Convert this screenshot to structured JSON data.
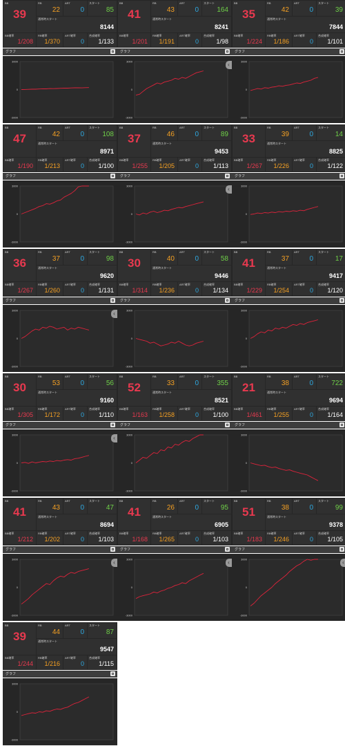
{
  "labels": {
    "bb": "BB",
    "rb": "RB",
    "art": "ART",
    "start": "スタート",
    "normal_start": "通常時スタート",
    "bb_prob": "BB確率",
    "rb_prob": "RB確率",
    "art_prob": "ART確率",
    "total_prob": "合成確率",
    "graph": "グラフ",
    "y_top": "3000",
    "y_zero": "0",
    "y_bottom": "-3000"
  },
  "colors": {
    "bb": "#e8394f",
    "rb": "#f5a023",
    "art": "#2ea8e0",
    "start": "#6fd048",
    "line": "#e0233b"
  },
  "icons": {
    "expand": "expand-icon",
    "next": "chevron-right-icon"
  },
  "machines": [
    {
      "bb": "39",
      "rb": "22",
      "art": "0",
      "start": "85",
      "normal_start": "8144",
      "bb_prob": "1/208",
      "rb_prob": "1/370",
      "art_prob": "0",
      "total_prob": "1/133",
      "arrow": false,
      "series": [
        0,
        10,
        25,
        40,
        35,
        60,
        80,
        75,
        100,
        95,
        110,
        130,
        150,
        145,
        170,
        185,
        190,
        175,
        200,
        210
      ]
    },
    {
      "bb": "41",
      "rb": "43",
      "art": "0",
      "start": "164",
      "normal_start": "8241",
      "bb_prob": "1/201",
      "rb_prob": "1/191",
      "art_prob": "0",
      "total_prob": "1/98",
      "arrow": true,
      "series": [
        -600,
        -500,
        -200,
        100,
        300,
        500,
        700,
        600,
        800,
        900,
        1000,
        1200,
        1100,
        1300,
        1200,
        1400,
        1600,
        1800,
        1900,
        2000
      ]
    },
    {
      "bb": "35",
      "rb": "42",
      "art": "0",
      "start": "39",
      "normal_start": "7844",
      "bb_prob": "1/224",
      "rb_prob": "1/186",
      "art_prob": "0",
      "total_prob": "1/101",
      "arrow": false,
      "series": [
        -100,
        0,
        100,
        50,
        200,
        150,
        250,
        300,
        400,
        350,
        450,
        500,
        600,
        700,
        650,
        800,
        900,
        1000,
        1200,
        1300
      ]
    },
    {
      "bb": "47",
      "rb": "42",
      "art": "0",
      "start": "108",
      "normal_start": "8971",
      "bb_prob": "1/190",
      "rb_prob": "1/213",
      "art_prob": "0",
      "total_prob": "1/100",
      "arrow": false,
      "series": [
        0,
        150,
        300,
        450,
        600,
        800,
        900,
        1100,
        1050,
        1200,
        1400,
        1500,
        1800,
        2000,
        2200,
        2500,
        2900,
        3000,
        3000,
        3000
      ]
    },
    {
      "bb": "37",
      "rb": "46",
      "art": "0",
      "start": "89",
      "normal_start": "9453",
      "bb_prob": "1/255",
      "rb_prob": "1/205",
      "art_prob": "0",
      "total_prob": "1/113",
      "arrow": true,
      "series": [
        0,
        -100,
        100,
        0,
        200,
        300,
        150,
        250,
        400,
        350,
        500,
        600,
        700,
        650,
        800,
        900,
        1000,
        1100,
        1200,
        1300
      ]
    },
    {
      "bb": "33",
      "rb": "39",
      "art": "0",
      "start": "14",
      "normal_start": "8825",
      "bb_prob": "1/267",
      "rb_prob": "1/226",
      "art_prob": "0",
      "total_prob": "1/122",
      "arrow": false,
      "series": [
        -50,
        0,
        100,
        50,
        150,
        100,
        200,
        150,
        250,
        200,
        300,
        250,
        350,
        300,
        400,
        350,
        500,
        600,
        700,
        800
      ]
    },
    {
      "bb": "36",
      "rb": "37",
      "art": "0",
      "start": "98",
      "normal_start": "9620",
      "bb_prob": "1/267",
      "rb_prob": "1/260",
      "art_prob": "0",
      "total_prob": "1/131",
      "arrow": true,
      "series": [
        0,
        200,
        500,
        800,
        1000,
        900,
        1200,
        1100,
        1300,
        1200,
        1000,
        1100,
        1200,
        900,
        1100,
        1000,
        1200,
        1100,
        1000,
        900
      ]
    },
    {
      "bb": "30",
      "rb": "40",
      "art": "0",
      "start": "58",
      "normal_start": "9446",
      "bb_prob": "1/314",
      "rb_prob": "1/236",
      "art_prob": "0",
      "total_prob": "1/134",
      "arrow": false,
      "series": [
        0,
        -100,
        -200,
        -300,
        -500,
        -400,
        -600,
        -800,
        -700,
        -600,
        -400,
        -500,
        -300,
        -500,
        -700,
        -800,
        -700,
        -500,
        -400,
        -300
      ]
    },
    {
      "bb": "41",
      "rb": "37",
      "art": "0",
      "start": "17",
      "normal_start": "9417",
      "bb_prob": "1/229",
      "rb_prob": "1/254",
      "art_prob": "0",
      "total_prob": "1/120",
      "arrow": false,
      "series": [
        0,
        200,
        500,
        700,
        600,
        900,
        800,
        1100,
        1000,
        1200,
        1100,
        1300,
        1500,
        1400,
        1600,
        1500,
        1700,
        1800,
        1900,
        2000
      ]
    },
    {
      "bb": "30",
      "rb": "53",
      "art": "0",
      "start": "56",
      "normal_start": "9160",
      "bb_prob": "1/305",
      "rb_prob": "1/172",
      "art_prob": "0",
      "total_prob": "1/110",
      "arrow": true,
      "series": [
        0,
        50,
        -50,
        100,
        0,
        80,
        150,
        100,
        200,
        150,
        250,
        200,
        300,
        350,
        300,
        450,
        500,
        600,
        700,
        800
      ]
    },
    {
      "bb": "52",
      "rb": "33",
      "art": "0",
      "start": "355",
      "normal_start": "8521",
      "bb_prob": "1/163",
      "rb_prob": "1/258",
      "art_prob": "0",
      "total_prob": "1/100",
      "arrow": false,
      "series": [
        0,
        300,
        600,
        500,
        800,
        1100,
        1000,
        1400,
        1300,
        1700,
        1600,
        2000,
        1900,
        2200,
        2400,
        2300,
        2600,
        2800,
        3000,
        3000
      ]
    },
    {
      "bb": "21",
      "rb": "38",
      "art": "0",
      "start": "722",
      "normal_start": "9694",
      "bb_prob": "1/461",
      "rb_prob": "1/255",
      "art_prob": "0",
      "total_prob": "1/164",
      "arrow": false,
      "series": [
        0,
        -100,
        -200,
        -300,
        -250,
        -400,
        -500,
        -450,
        -600,
        -700,
        -800,
        -750,
        -900,
        -1000,
        -1100,
        -1200,
        -1300,
        -1500,
        -1700,
        -1900
      ]
    },
    {
      "bb": "41",
      "rb": "43",
      "art": "0",
      "start": "47",
      "normal_start": "8694",
      "bb_prob": "1/212",
      "rb_prob": "1/202",
      "art_prob": "0",
      "total_prob": "1/103",
      "arrow": true,
      "series": [
        -1800,
        -1500,
        -1200,
        -800,
        -500,
        -200,
        100,
        400,
        300,
        700,
        1000,
        1200,
        1100,
        1400,
        1600,
        1500,
        1700,
        1800,
        1900,
        2000
      ]
    },
    {
      "bb": "41",
      "rb": "26",
      "art": "0",
      "start": "95",
      "normal_start": "6905",
      "bb_prob": "1/168",
      "rb_prob": "1/265",
      "art_prob": "0",
      "total_prob": "1/103",
      "arrow": true,
      "series": [
        -1200,
        -1000,
        -900,
        -800,
        -700,
        -500,
        -600,
        -400,
        -300,
        -100,
        0,
        200,
        300,
        500,
        400,
        700,
        900,
        1100,
        1300,
        1500
      ]
    },
    {
      "bb": "51",
      "rb": "38",
      "art": "0",
      "start": "99",
      "normal_start": "9378",
      "bb_prob": "1/183",
      "rb_prob": "1/246",
      "art_prob": "0",
      "total_prob": "1/105",
      "arrow": true,
      "series": [
        -2000,
        -1700,
        -1300,
        -900,
        -600,
        -300,
        0,
        400,
        700,
        1000,
        1300,
        1700,
        2000,
        2300,
        2500,
        2800,
        3000,
        2900,
        3000,
        3000
      ]
    },
    {
      "bb": "39",
      "rb": "44",
      "art": "0",
      "start": "87",
      "normal_start": "9547",
      "bb_prob": "1/244",
      "rb_prob": "1/216",
      "art_prob": "0",
      "total_prob": "1/115",
      "arrow": false,
      "series": [
        -400,
        -300,
        -200,
        -100,
        -150,
        0,
        -50,
        100,
        50,
        200,
        300,
        250,
        400,
        500,
        700,
        900,
        1000,
        1200,
        1400,
        1600
      ]
    }
  ]
}
